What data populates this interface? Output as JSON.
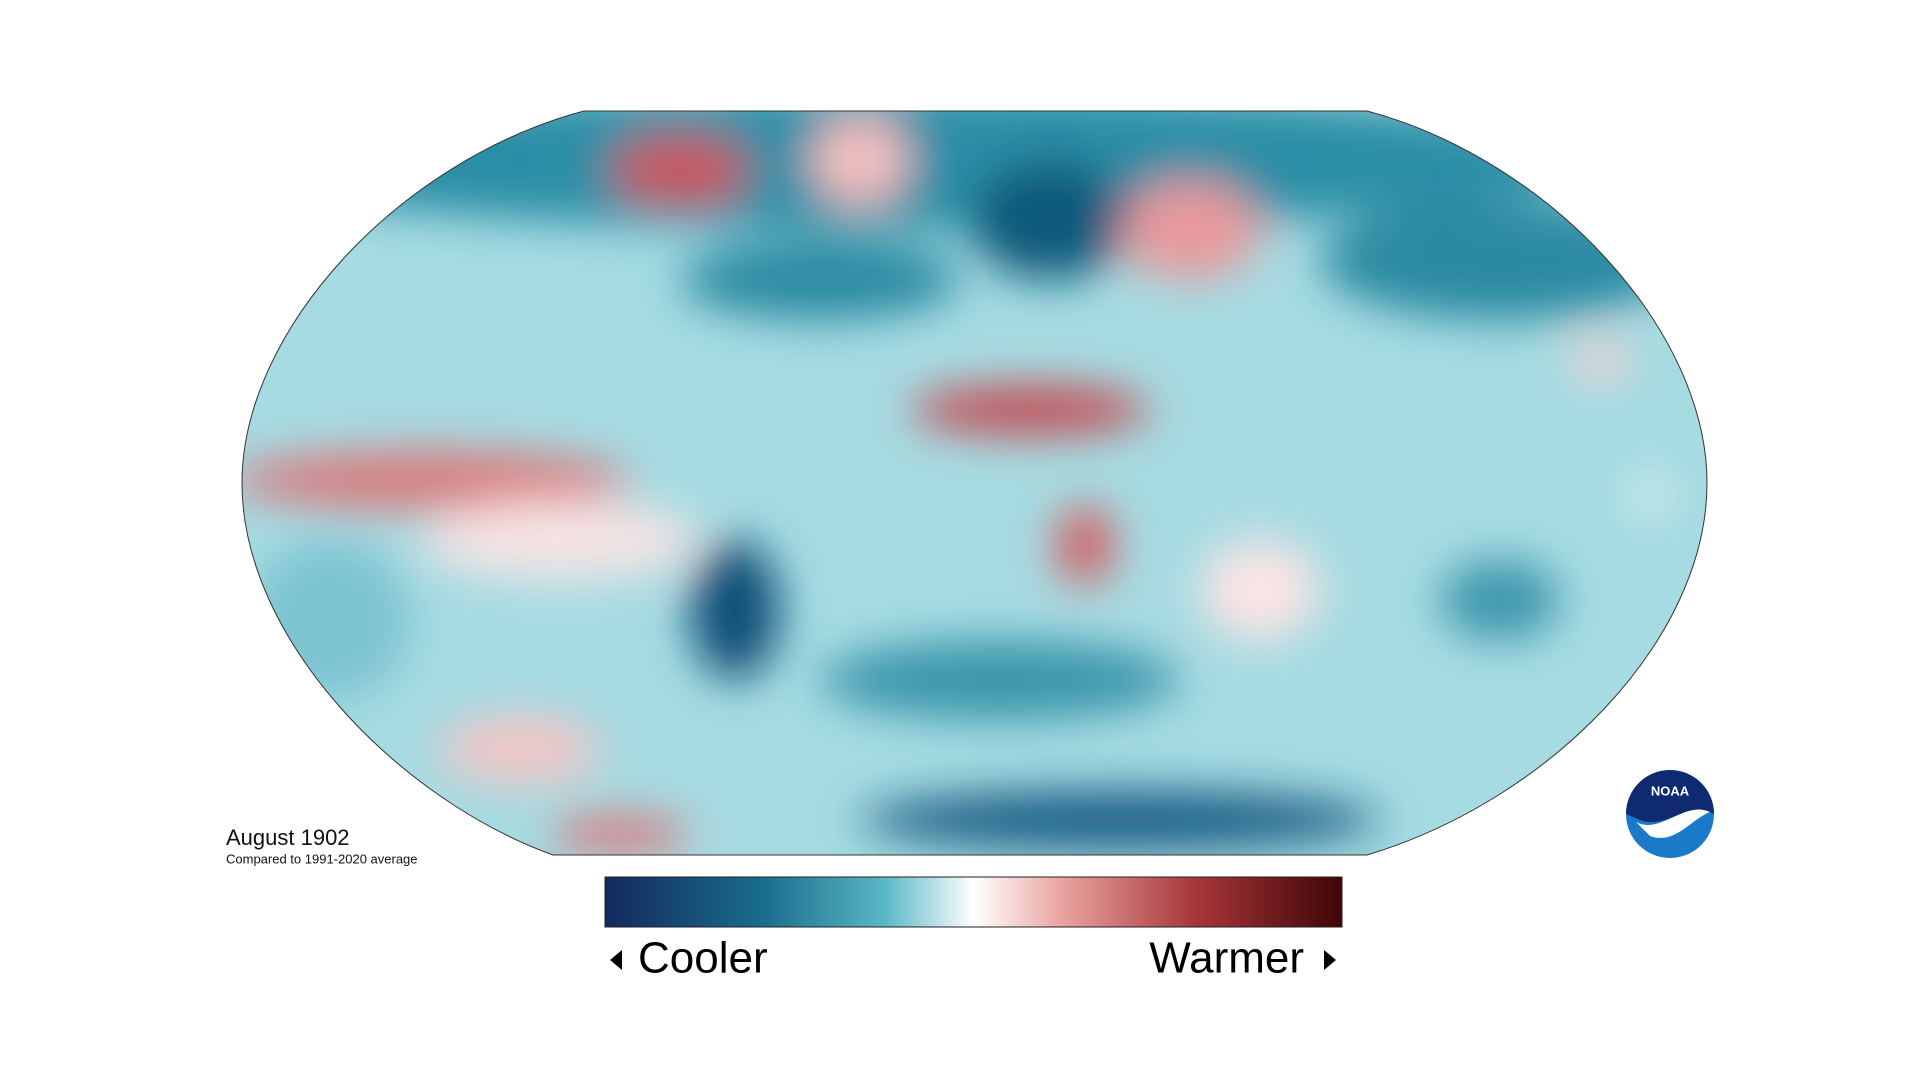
{
  "title": "August 1902",
  "subtitle": "Compared to 1991-2020 average",
  "legend": {
    "low_label": "Cooler",
    "high_label": "Warmer"
  },
  "logo": {
    "text": "NOAA"
  }
}
